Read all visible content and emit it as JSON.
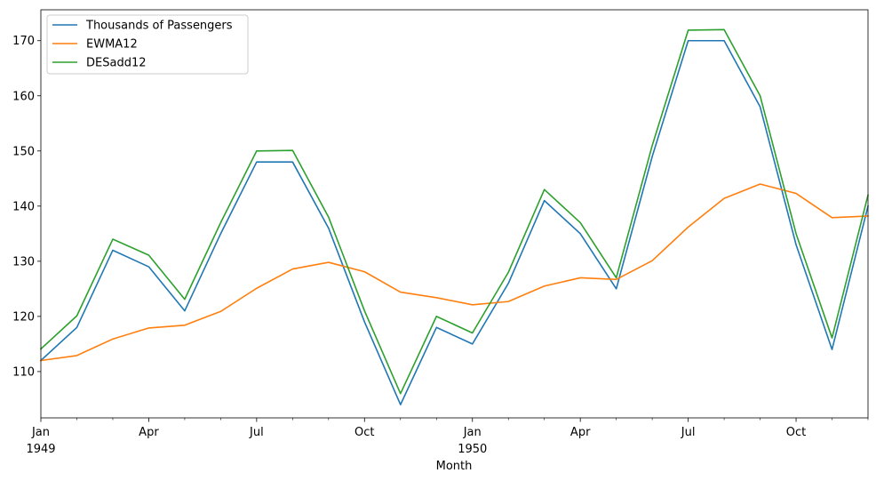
{
  "chart_data": {
    "type": "line",
    "xlabel": "Month",
    "x": [
      "1949-01",
      "1949-02",
      "1949-03",
      "1949-04",
      "1949-05",
      "1949-06",
      "1949-07",
      "1949-08",
      "1949-09",
      "1949-10",
      "1949-11",
      "1949-12",
      "1950-01",
      "1950-02",
      "1950-03",
      "1950-04",
      "1950-05",
      "1950-06",
      "1950-07",
      "1950-08",
      "1950-09",
      "1950-10",
      "1950-11",
      "1950-12"
    ],
    "x_major_ticks": [
      {
        "x": "1949-01",
        "label": "Jan",
        "sublabel": "1949"
      },
      {
        "x": "1949-04",
        "label": "Apr"
      },
      {
        "x": "1949-07",
        "label": "Jul"
      },
      {
        "x": "1949-10",
        "label": "Oct"
      },
      {
        "x": "1950-01",
        "label": "Jan",
        "sublabel": "1950"
      },
      {
        "x": "1950-04",
        "label": "Apr"
      },
      {
        "x": "1950-07",
        "label": "Jul"
      },
      {
        "x": "1950-10",
        "label": "Oct"
      }
    ],
    "y_ticks": [
      110,
      120,
      130,
      140,
      150,
      160,
      170
    ],
    "ylim": [
      101.6,
      175.6
    ],
    "xlim": [
      "1949-01",
      "1950-12"
    ],
    "grid": false,
    "legend_position": "top-left",
    "series": [
      {
        "name": "Thousands of Passengers",
        "color": "#1f77b4",
        "values": [
          112,
          118,
          132,
          129,
          121,
          135,
          148,
          148,
          136,
          119,
          104,
          118,
          115,
          126,
          141,
          135,
          125,
          149,
          170,
          170,
          158,
          133,
          114,
          140
        ]
      },
      {
        "name": "EWMA12",
        "color": "#ff7f0e",
        "values": [
          112.0,
          112.9,
          115.9,
          117.9,
          118.4,
          120.9,
          125.1,
          128.6,
          129.8,
          128.1,
          124.4,
          123.4,
          122.1,
          122.7,
          125.5,
          127.0,
          126.7,
          130.1,
          136.2,
          141.4,
          144.0,
          142.3,
          137.9,
          138.2
        ]
      },
      {
        "name": "DESadd12",
        "color": "#2ca02c",
        "values": [
          114.1,
          120.1,
          134.0,
          131.1,
          123.1,
          137.0,
          150.0,
          150.1,
          138.0,
          121.0,
          106.0,
          120.0,
          117.0,
          128.0,
          143.0,
          137.0,
          127.0,
          151.0,
          171.9,
          172.0,
          160.0,
          135.0,
          116.1,
          142.0
        ]
      }
    ]
  }
}
